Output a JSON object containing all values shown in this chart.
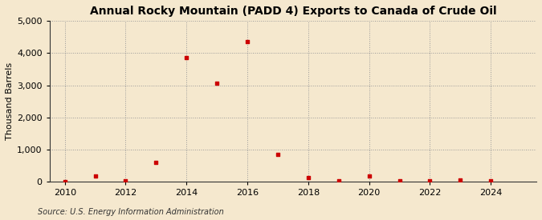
{
  "title": "Annual Rocky Mountain (PADD 4) Exports to Canada of Crude Oil",
  "ylabel": "Thousand Barrels",
  "source": "Source: U.S. Energy Information Administration",
  "background_color": "#f5e8ce",
  "marker_color": "#cc0000",
  "years": [
    2010,
    2011,
    2012,
    2013,
    2014,
    2015,
    2016,
    2017,
    2018,
    2019,
    2020,
    2021,
    2022,
    2023,
    2024
  ],
  "values": [
    5,
    175,
    20,
    600,
    3850,
    3060,
    4350,
    850,
    130,
    30,
    185,
    30,
    30,
    50,
    20
  ],
  "xlim": [
    2009.5,
    2025.5
  ],
  "ylim": [
    0,
    5000
  ],
  "yticks": [
    0,
    1000,
    2000,
    3000,
    4000,
    5000
  ],
  "xticks": [
    2010,
    2012,
    2014,
    2016,
    2018,
    2020,
    2022,
    2024
  ],
  "title_fontsize": 10,
  "label_fontsize": 8,
  "tick_fontsize": 8,
  "source_fontsize": 7
}
